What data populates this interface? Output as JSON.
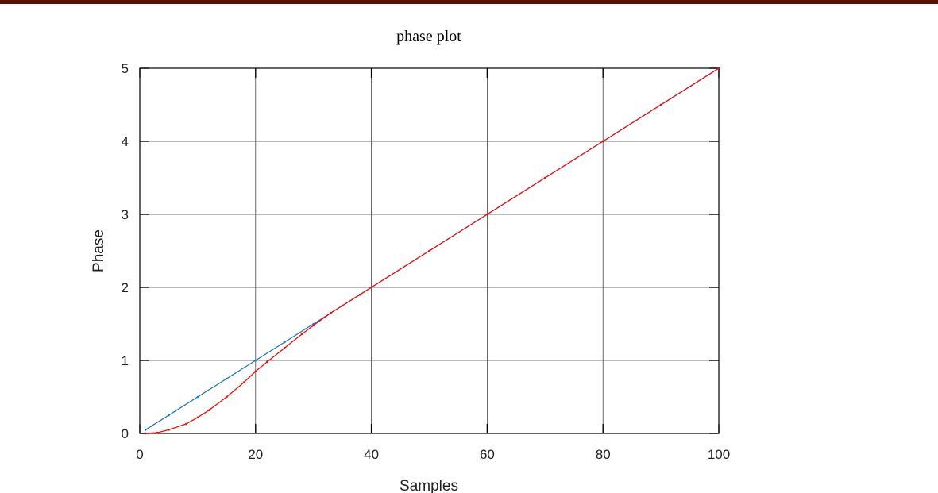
{
  "header": {
    "bar_color": "#5a0e04"
  },
  "chart_data": {
    "type": "line",
    "title": "phase plot",
    "xlabel": "Samples",
    "ylabel": "Phase",
    "xlim": [
      0,
      100
    ],
    "ylim": [
      0,
      5
    ],
    "xticks": [
      "0",
      "20",
      "40",
      "60",
      "80",
      "100"
    ],
    "yticks": [
      "0",
      "1",
      "2",
      "3",
      "4",
      "5"
    ],
    "grid": true,
    "legend": "none",
    "series": [
      {
        "color": "#1f77b4",
        "marker": "dot",
        "x": [
          1,
          5,
          10,
          15,
          20,
          25,
          30,
          35,
          40,
          50,
          60,
          70,
          80,
          90,
          100
        ],
        "y": [
          0.05,
          0.25,
          0.5,
          0.75,
          1.0,
          1.25,
          1.5,
          1.75,
          2.0,
          2.5,
          3.0,
          3.5,
          4.0,
          4.5,
          5.0
        ]
      },
      {
        "color": "#e8100a",
        "marker": "dot",
        "x": [
          1,
          3,
          5,
          8,
          10,
          12,
          15,
          18,
          20,
          22,
          25,
          28,
          30,
          33,
          35,
          38,
          40,
          50,
          60,
          70,
          80,
          90,
          100
        ],
        "y": [
          0.0,
          0.01,
          0.05,
          0.13,
          0.22,
          0.32,
          0.5,
          0.7,
          0.85,
          0.98,
          1.17,
          1.36,
          1.48,
          1.65,
          1.75,
          1.9,
          2.0,
          2.5,
          3.0,
          3.5,
          4.0,
          4.5,
          5.0
        ]
      }
    ]
  }
}
